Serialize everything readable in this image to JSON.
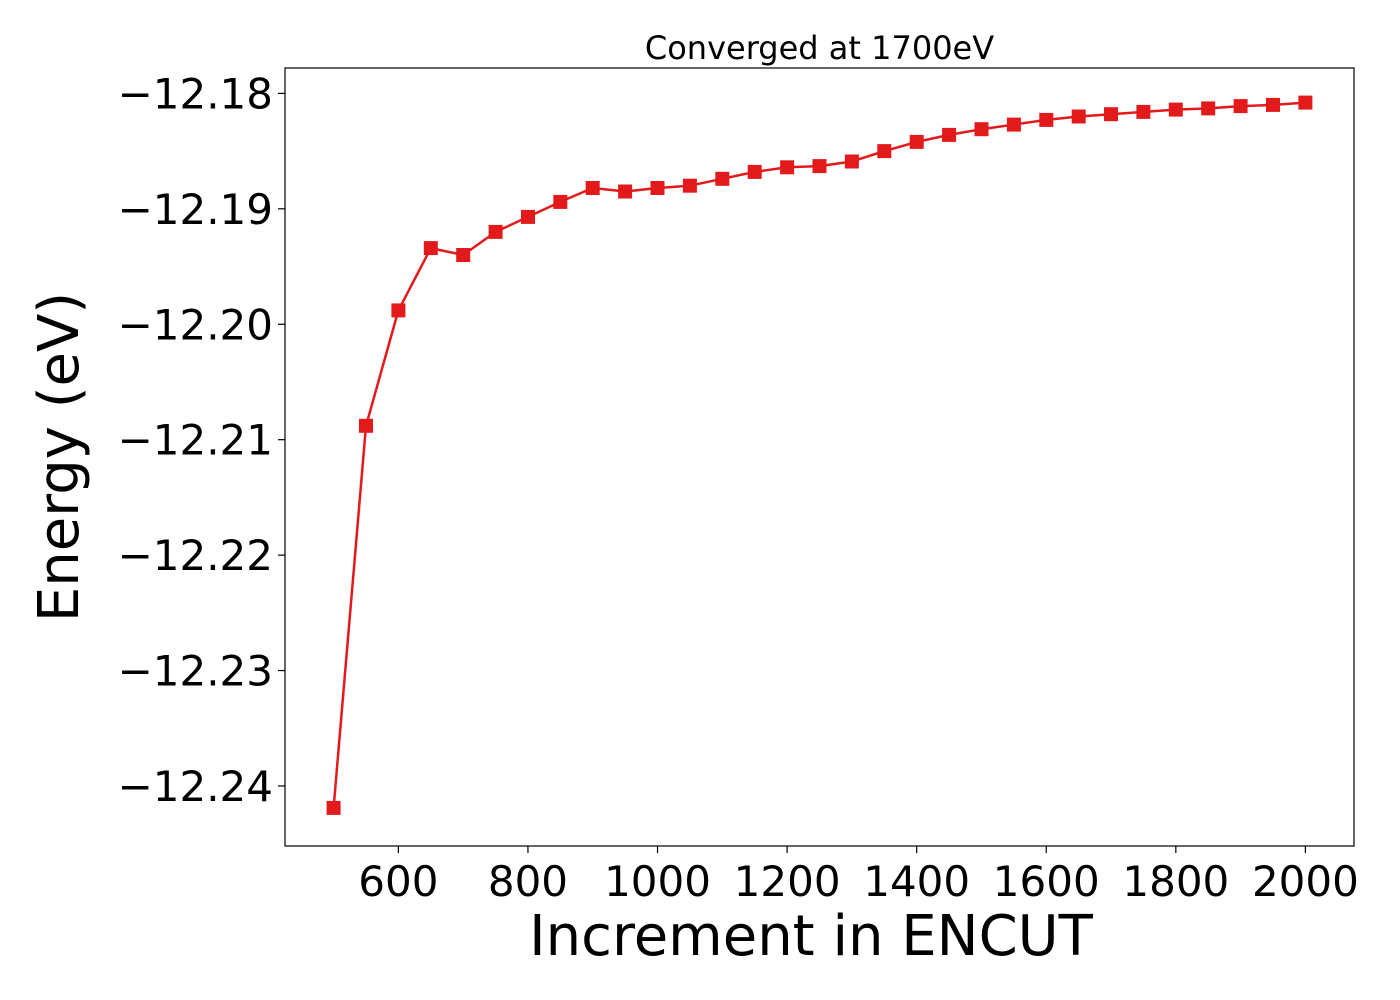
{
  "chart_data": {
    "type": "line",
    "title": "Converged at 1700eV",
    "xlabel": "Increment in ENCUT",
    "ylabel": "Energy (eV)",
    "xlim": [
      425,
      2075
    ],
    "ylim": [
      -12.2452,
      -12.1778
    ],
    "x_ticks": [
      600,
      800,
      1000,
      1200,
      1400,
      1600,
      1800,
      2000
    ],
    "x_tick_labels": [
      "600",
      "800",
      "1000",
      "1200",
      "1400",
      "1600",
      "1800",
      "2000"
    ],
    "y_ticks": [
      -12.18,
      -12.19,
      -12.2,
      -12.21,
      -12.22,
      -12.23,
      -12.24
    ],
    "y_tick_labels": [
      "−12.18",
      "−12.19",
      "−12.20",
      "−12.21",
      "−12.22",
      "−12.23",
      "−12.24"
    ],
    "grid": false,
    "series": [
      {
        "color": "#e31a1c",
        "marker": "square",
        "x": [
          500,
          550,
          600,
          650,
          700,
          750,
          800,
          850,
          900,
          950,
          1000,
          1050,
          1100,
          1150,
          1200,
          1250,
          1300,
          1350,
          1400,
          1450,
          1500,
          1550,
          1600,
          1650,
          1700,
          1750,
          1800,
          1850,
          1900,
          1950,
          2000
        ],
        "y": [
          -12.2419,
          -12.2088,
          -12.1988,
          -12.1934,
          -12.194,
          -12.192,
          -12.1907,
          -12.1894,
          -12.1882,
          -12.1885,
          -12.1882,
          -12.188,
          -12.1874,
          -12.1868,
          -12.1864,
          -12.1863,
          -12.1859,
          -12.185,
          -12.1842,
          -12.1836,
          -12.1831,
          -12.1827,
          -12.1823,
          -12.182,
          -12.1818,
          -12.1816,
          -12.1814,
          -12.1813,
          -12.1811,
          -12.181,
          -12.1808
        ]
      }
    ]
  }
}
